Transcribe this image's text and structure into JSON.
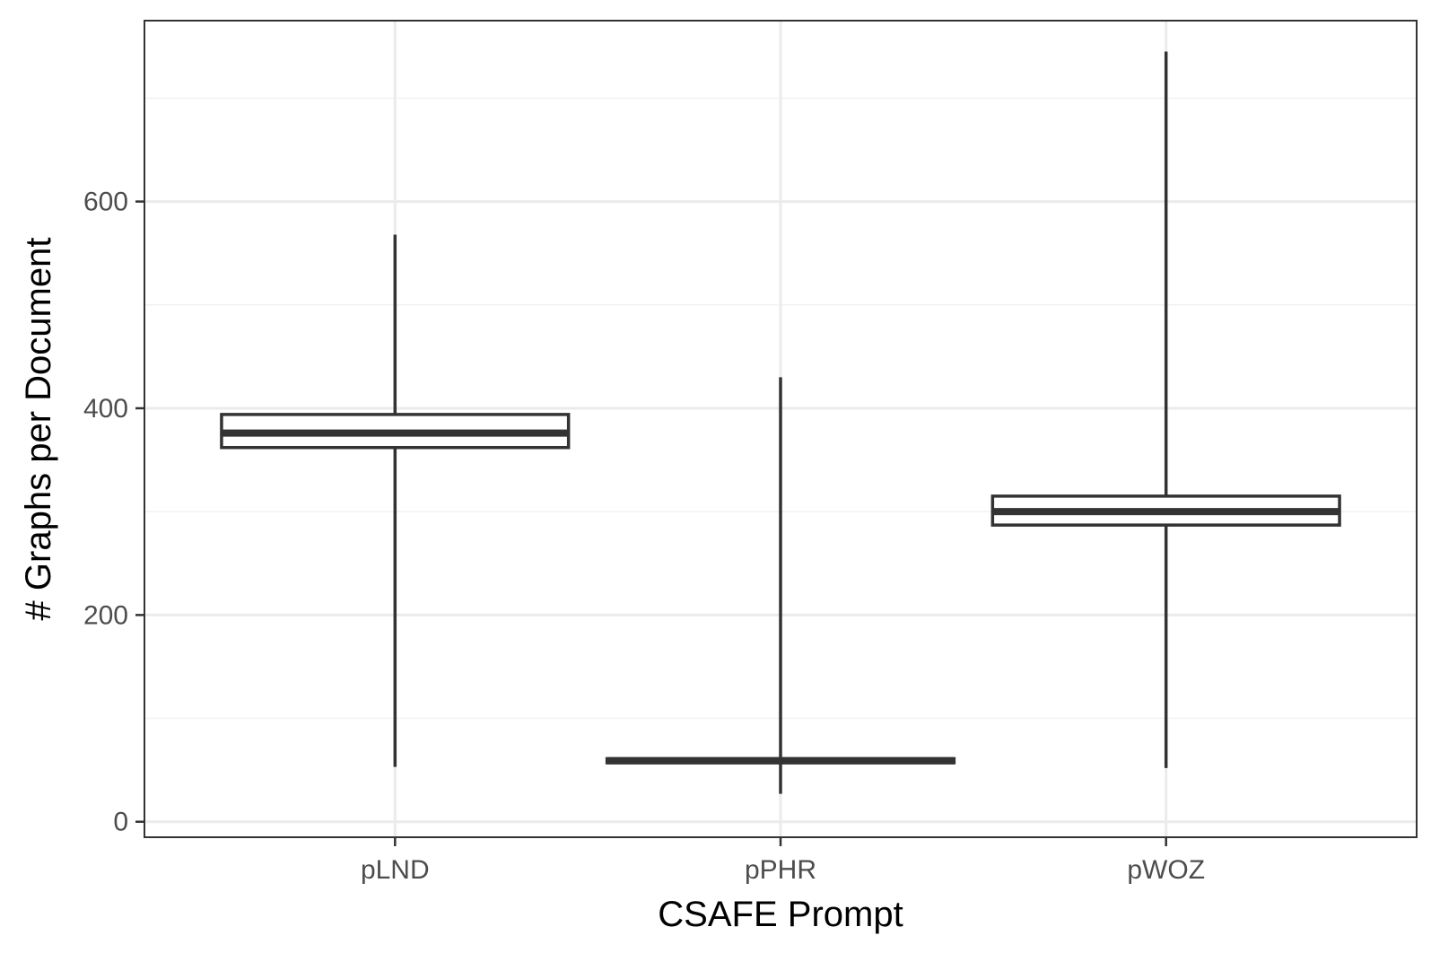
{
  "chart_data": {
    "type": "box",
    "title": "",
    "xlabel": "CSAFE Prompt",
    "ylabel": "# Graphs per Document",
    "categories": [
      "pLND",
      "pPHR",
      "pWOZ"
    ],
    "ylim": [
      -15,
      775
    ],
    "yticks": [
      0,
      200,
      400,
      600
    ],
    "grid": true,
    "legend": "none",
    "boxes": [
      {
        "category": "pLND",
        "min": 53,
        "q1": 362,
        "median": 376,
        "q3": 394,
        "max": 568
      },
      {
        "category": "pPHR",
        "min": 27,
        "q1": 57,
        "median": 59,
        "q3": 61,
        "max": 430
      },
      {
        "category": "pWOZ",
        "min": 52,
        "q1": 287,
        "median": 300,
        "q3": 315,
        "max": 745
      }
    ],
    "colors": {
      "box_stroke": "#333333",
      "box_fill": "#ffffff",
      "grid_major": "#ebebeb",
      "grid_minor": "#f2f2f2",
      "panel_border": "#333333"
    }
  }
}
